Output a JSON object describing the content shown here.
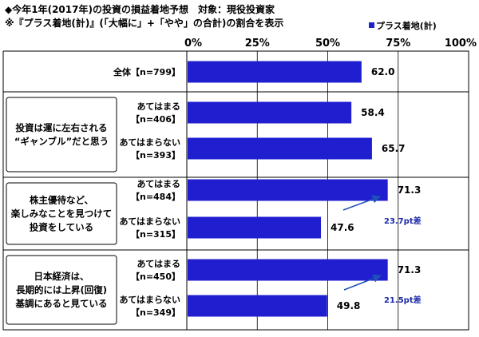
{
  "title_line1": "◆今年1年(2017年)の投資の損益着地予想　対象：現役投資家",
  "title_line2": "※『プラス着地(計)』(「大幅に」+「やや」の合計)の割合を表示",
  "legend": "プラス着地(計)",
  "colors": {
    "bar": "#1f1fd0",
    "arrow": "#1f4fb8"
  },
  "chart_data": {
    "type": "bar",
    "orientation": "horizontal",
    "title": "◆今年1年(2017年)の投資の損益着地予想　対象：現役投資家",
    "subtitle": "※『プラス着地(計)』(「大幅に」+「やや」の合計)の割合を表示",
    "xlim": [
      0,
      100
    ],
    "xticks": [
      "0%",
      "25%",
      "50%",
      "75%",
      "100%"
    ],
    "series": [
      {
        "name": "プラス着地(計)"
      }
    ],
    "rows": [
      {
        "label1": "全体【n=799】",
        "label2": "",
        "value": 62.0
      },
      {
        "label1": "あてはまる",
        "label2": "【n=406】",
        "value": 58.4
      },
      {
        "label1": "あてはまらない",
        "label2": "【n=393】",
        "value": 65.7
      },
      {
        "label1": "あてはまる",
        "label2": "【n=484】",
        "value": 71.3
      },
      {
        "label1": "あてはまらない",
        "label2": "【n=315】",
        "value": 47.6
      },
      {
        "label1": "あてはまる",
        "label2": "【n=450】",
        "value": 71.3
      },
      {
        "label1": "あてはまらない",
        "label2": "【n=349】",
        "value": 49.8
      }
    ],
    "groups": [
      {
        "lines": [
          "投資は運に左右される",
          "“ギャンブル”だと思う"
        ]
      },
      {
        "lines": [
          "株主優待など、",
          "楽しみなことを見つけて",
          "投資をしている"
        ]
      },
      {
        "lines": [
          "日本経済は、",
          "長期的には上昇(回復)",
          "基調にあると見ている"
        ]
      }
    ],
    "annotations": [
      {
        "text": "23.7pt差"
      },
      {
        "text": "21.5pt差"
      }
    ]
  }
}
